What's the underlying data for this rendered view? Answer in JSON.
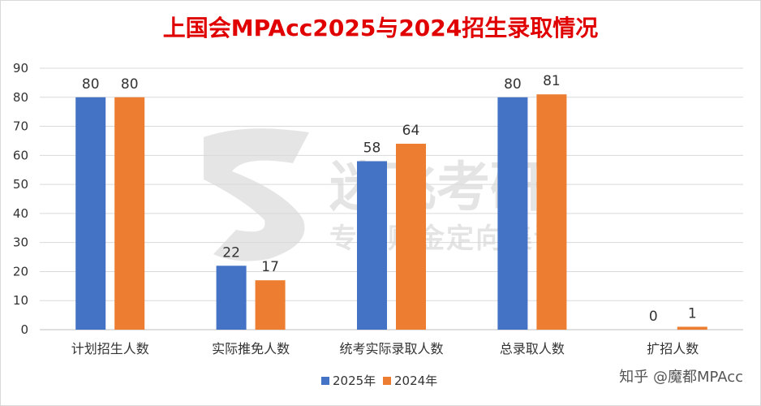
{
  "chart_data": {
    "type": "bar",
    "title": "上国会MPAcc2025与2024招生录取情况",
    "categories": [
      "计划招生人数",
      "实际推免人数",
      "统考实际录取人数",
      "总录取人数",
      "扩招人数"
    ],
    "series": [
      {
        "name": "2025年",
        "values": [
          80,
          22,
          58,
          80,
          0
        ],
        "color": "#4472C4"
      },
      {
        "name": "2024年",
        "values": [
          80,
          17,
          64,
          81,
          1
        ],
        "color": "#ED7D31"
      }
    ],
    "ylim": [
      0,
      90
    ],
    "yticks": [
      0,
      10,
      20,
      30,
      40,
      50,
      60,
      70,
      80,
      90
    ],
    "grid": true,
    "legend_position": "bottom"
  },
  "watermark": {
    "main": "迷飞考研",
    "sub": "专注财金定向集训"
  },
  "credit": "知乎 @魔都MPAcc"
}
